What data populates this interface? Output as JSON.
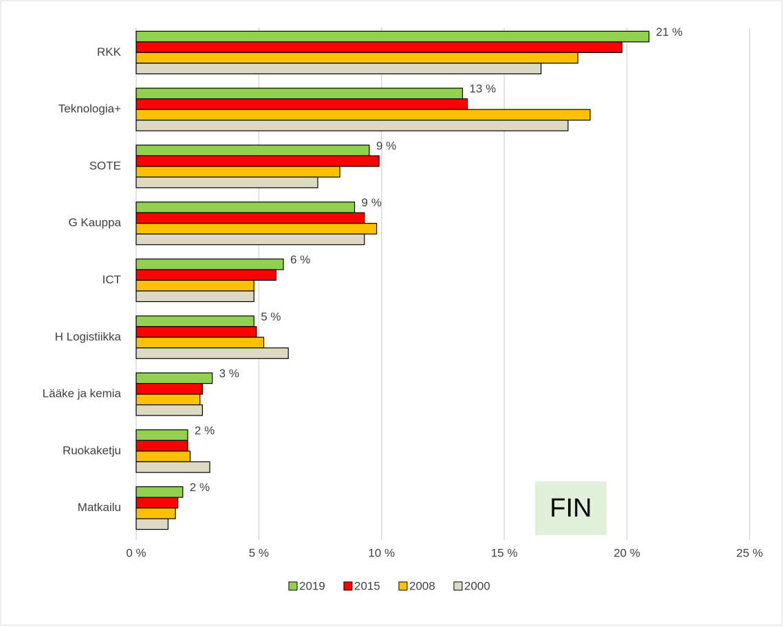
{
  "chart_data": {
    "type": "bar",
    "orientation": "horizontal",
    "categories": [
      "RKK",
      "Teknologia+",
      "SOTE",
      "G Kauppa",
      "ICT",
      "H  Logistiikka",
      "Lääke ja kemia",
      "Ruokaketju",
      "Matkailu"
    ],
    "series": [
      {
        "name": "2019",
        "color": "#92d050",
        "values": [
          20.9,
          13.3,
          9.5,
          8.9,
          6.0,
          4.8,
          3.1,
          2.1,
          1.9
        ],
        "value_labels": [
          "21 %",
          "13 %",
          "9 %",
          "9 %",
          "6 %",
          "5 %",
          "3 %",
          "2 %",
          "2 %"
        ]
      },
      {
        "name": "2015",
        "color": "#ff0000",
        "values": [
          19.8,
          13.5,
          9.9,
          9.3,
          5.7,
          4.9,
          2.7,
          2.1,
          1.7
        ]
      },
      {
        "name": "2008",
        "color": "#ffc000",
        "values": [
          18.0,
          18.5,
          8.3,
          9.8,
          4.8,
          5.2,
          2.6,
          2.2,
          1.6
        ]
      },
      {
        "name": "2000",
        "color": "#ddd9c3",
        "values": [
          16.5,
          17.6,
          7.4,
          9.3,
          4.8,
          6.2,
          2.7,
          3.0,
          1.3
        ]
      }
    ],
    "xlim": [
      0,
      25
    ],
    "xticks": [
      {
        "value": 0,
        "label": "0 %"
      },
      {
        "value": 5,
        "label": "5 %"
      },
      {
        "value": 10,
        "label": "10 %"
      },
      {
        "value": 15,
        "label": "15 %"
      },
      {
        "value": 20,
        "label": "20 %"
      },
      {
        "value": 25,
        "label": "25 %"
      }
    ],
    "grid": true,
    "legend": "bottom",
    "annotation": "FIN"
  }
}
